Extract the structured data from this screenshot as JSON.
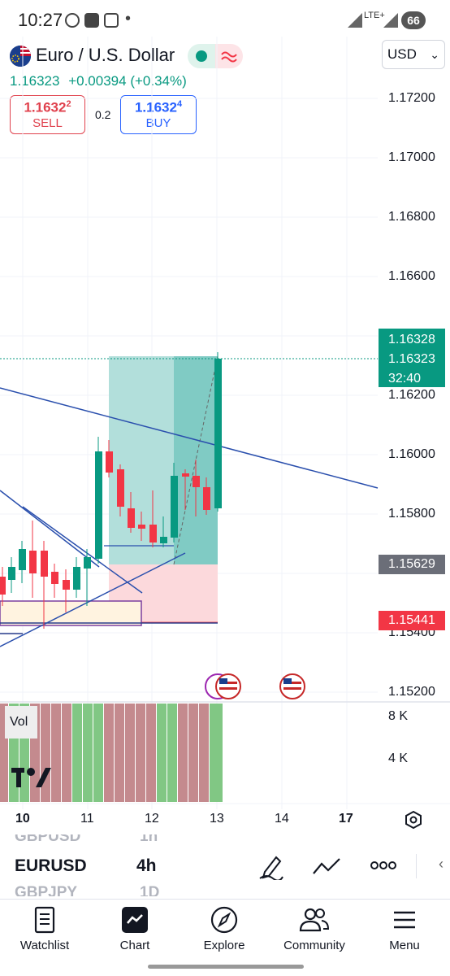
{
  "status_bar": {
    "time": "10:27",
    "dot": "•",
    "network": "LTE+",
    "battery": "66"
  },
  "header": {
    "symbol_title": "Euro / U.S. Dollar",
    "market_status_icon": "wave-icon",
    "currency": "USD",
    "last_price": "1.16323",
    "change": "+0.00394",
    "change_percent": "(+0.34%)"
  },
  "trade": {
    "sell_price_main": "1.1632",
    "sell_price_sup": "2",
    "sell_label": "SELL",
    "spread": "0.2",
    "buy_price_main": "1.1632",
    "buy_price_sup": "4",
    "buy_label": "BUY"
  },
  "price_axis": {
    "labels": [
      "1.17200",
      "1.17000",
      "1.16800",
      "1.16600",
      "1.16200",
      "1.16000",
      "1.15800",
      "1.15400",
      "1.15200"
    ],
    "tag_target": "1.16328",
    "tag_current": "1.16323",
    "tag_countdown": "32:40",
    "tag_entry": "1.15629",
    "tag_stop": "1.15441"
  },
  "time_axis": {
    "labels": [
      "10",
      "11",
      "12",
      "13",
      "14",
      "17"
    ]
  },
  "volume": {
    "label": "Vol",
    "axis_labels": [
      "8 K",
      "4 K"
    ]
  },
  "colors": {
    "up": "#089981",
    "down": "#f23645",
    "vol_up": "#81c784",
    "vol_down": "#c48a8e",
    "accent": "#2962ff"
  },
  "symbol_strip": {
    "prev_symbol": "GBPUSD",
    "prev_interval": "1h",
    "symbol": "EURUSD",
    "interval": "4h",
    "next_symbol": "GBPJPY",
    "next_interval": "1D",
    "tools": [
      "draw-pen-icon",
      "trend-line-icon",
      "more-icon",
      "collapse-icon"
    ]
  },
  "nav": [
    {
      "label": "Watchlist",
      "icon": "watchlist-icon"
    },
    {
      "label": "Chart",
      "icon": "chart-icon"
    },
    {
      "label": "Explore",
      "icon": "compass-icon"
    },
    {
      "label": "Community",
      "icon": "community-icon"
    },
    {
      "label": "Menu",
      "icon": "menu-icon"
    }
  ]
}
